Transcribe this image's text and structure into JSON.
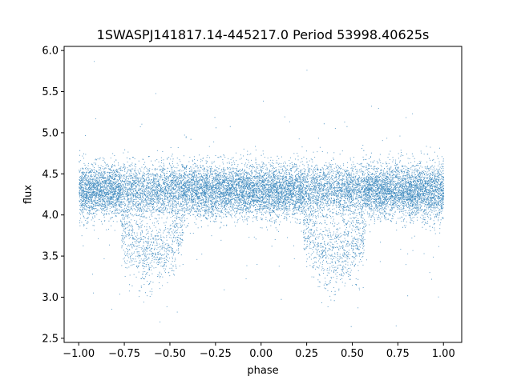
{
  "chart_data": {
    "type": "scatter",
    "title": "1SWASPJ141817.14-445217.0 Period 53998.40625s",
    "xlabel": "phase",
    "ylabel": "flux",
    "xlim": [
      -1.08,
      1.1
    ],
    "ylim": [
      2.45,
      6.05
    ],
    "xticks": [
      -1.0,
      -0.75,
      -0.5,
      -0.25,
      0.0,
      0.25,
      0.5,
      0.75,
      1.0
    ],
    "xtick_labels": [
      "−1.00",
      "−0.75",
      "−0.50",
      "−0.25",
      "0.00",
      "0.25",
      "0.50",
      "0.75",
      "1.00"
    ],
    "yticks": [
      2.5,
      3.0,
      3.5,
      4.0,
      4.5,
      5.0,
      5.5,
      6.0
    ],
    "ytick_labels": [
      "2.5",
      "3.0",
      "3.5",
      "4.0",
      "4.5",
      "5.0",
      "5.5",
      "6.0"
    ],
    "grid": false,
    "point_color": "#1f77b4",
    "baseline_flux": 4.3,
    "eclipse_centers": [
      -0.6,
      0.4
    ],
    "eclipse_min_flux": 3.3,
    "phase_range": [
      -1.0,
      1.0
    ],
    "flux_range_observed": [
      2.6,
      5.9
    ]
  }
}
